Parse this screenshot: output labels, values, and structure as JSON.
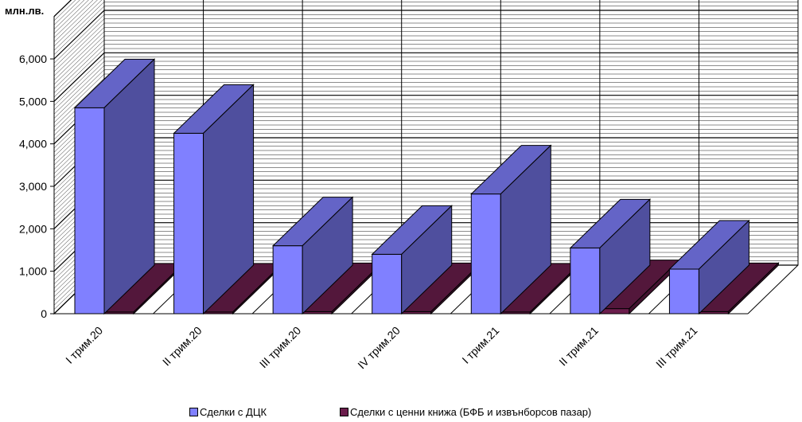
{
  "chart_data": {
    "type": "bar",
    "yunit": "млн.лв.",
    "categories": [
      "I трим.20",
      "II трим.20",
      "III трим.20",
      "IV трим.20",
      "I трим.21",
      "II трим.21",
      "III трим.21"
    ],
    "series": [
      {
        "name": "Сделки с ДЦК",
        "color": "#8080ff",
        "values": [
          4850,
          4250,
          1600,
          1400,
          2820,
          1550,
          1050
        ]
      },
      {
        "name": "Сделки с ценни книжа (БФБ и извънборсов пазар)",
        "color": "#6b1d4c",
        "values": [
          40,
          40,
          50,
          50,
          40,
          120,
          50
        ]
      }
    ],
    "yticks": [
      "0",
      "1,000",
      "2,000",
      "3,000",
      "4,000",
      "5,000",
      "6,000"
    ],
    "ylim": [
      0,
      6000
    ],
    "view": "3d",
    "grid": true,
    "legend": "bottom"
  }
}
